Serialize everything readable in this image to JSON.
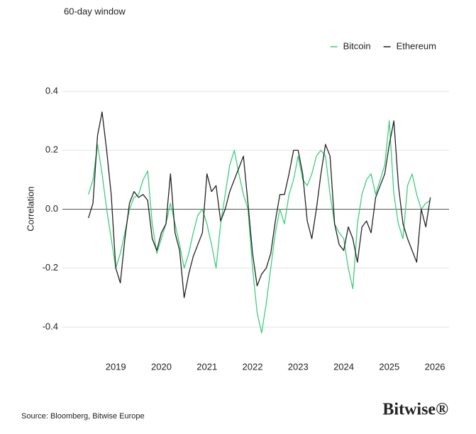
{
  "chart_data": {
    "type": "line",
    "subtitle": "60-day window",
    "y_label": "Correlation",
    "source": "Source: Bloomberg, Bitwise Europe",
    "brand": "Bitwise®",
    "legend": "top-right",
    "grid": true,
    "x": [
      2018.4,
      2018.5,
      2018.6,
      2018.7,
      2018.8,
      2018.9,
      2019.0,
      2019.1,
      2019.2,
      2019.3,
      2019.4,
      2019.5,
      2019.6,
      2019.7,
      2019.8,
      2019.9,
      2020.0,
      2020.1,
      2020.2,
      2020.3,
      2020.4,
      2020.5,
      2020.6,
      2020.7,
      2020.8,
      2020.9,
      2021.0,
      2021.1,
      2021.2,
      2021.3,
      2021.4,
      2021.5,
      2021.6,
      2021.7,
      2021.8,
      2021.9,
      2022.0,
      2022.1,
      2022.2,
      2022.3,
      2022.4,
      2022.5,
      2022.6,
      2022.7,
      2022.8,
      2022.9,
      2023.0,
      2023.1,
      2023.2,
      2023.3,
      2023.4,
      2023.5,
      2023.6,
      2023.7,
      2023.8,
      2023.9,
      2024.0,
      2024.1,
      2024.2,
      2024.3,
      2024.4,
      2024.5,
      2024.6,
      2024.7,
      2024.8,
      2024.9,
      2025.0,
      2025.1,
      2025.2,
      2025.3,
      2025.4,
      2025.5,
      2025.6,
      2025.7,
      2025.8,
      2025.9
    ],
    "series": [
      {
        "name": "Bitcoin",
        "color": "#3ecf7f",
        "values": [
          0.05,
          0.1,
          0.22,
          0.12,
          0.0,
          -0.1,
          -0.2,
          -0.15,
          -0.08,
          0.0,
          0.04,
          0.05,
          0.1,
          0.13,
          -0.05,
          -0.15,
          -0.1,
          -0.05,
          0.02,
          -0.05,
          -0.12,
          -0.2,
          -0.15,
          -0.08,
          -0.02,
          0.0,
          -0.05,
          -0.12,
          -0.2,
          -0.05,
          0.05,
          0.15,
          0.2,
          0.12,
          0.05,
          0.0,
          -0.2,
          -0.35,
          -0.42,
          -0.32,
          -0.2,
          -0.08,
          0.0,
          -0.05,
          0.05,
          0.1,
          0.18,
          0.1,
          0.08,
          0.12,
          0.18,
          0.2,
          0.18,
          0.05,
          -0.05,
          -0.08,
          -0.1,
          -0.2,
          -0.27,
          -0.05,
          0.05,
          0.1,
          0.12,
          0.05,
          0.1,
          0.15,
          0.3,
          0.05,
          -0.05,
          -0.1,
          0.08,
          0.12,
          0.05,
          0.0,
          0.02,
          0.03
        ]
      },
      {
        "name": "Ethereum",
        "color": "#222222",
        "values": [
          -0.03,
          0.02,
          0.25,
          0.33,
          0.2,
          0.05,
          -0.2,
          -0.25,
          -0.1,
          0.02,
          0.06,
          0.04,
          0.05,
          0.03,
          -0.1,
          -0.14,
          -0.08,
          -0.05,
          0.12,
          -0.08,
          -0.14,
          -0.3,
          -0.22,
          -0.16,
          -0.12,
          -0.08,
          0.12,
          0.06,
          0.08,
          -0.04,
          0.0,
          0.06,
          0.1,
          0.14,
          0.18,
          0.02,
          -0.15,
          -0.26,
          -0.22,
          -0.2,
          -0.15,
          -0.04,
          0.05,
          0.05,
          0.12,
          0.2,
          0.2,
          0.12,
          -0.04,
          -0.1,
          0.0,
          0.12,
          0.22,
          0.18,
          -0.05,
          -0.12,
          -0.14,
          -0.06,
          -0.1,
          -0.18,
          -0.06,
          -0.04,
          -0.08,
          0.04,
          0.08,
          0.12,
          0.22,
          0.3,
          0.08,
          -0.05,
          -0.1,
          -0.14,
          -0.18,
          0.0,
          -0.06,
          0.04
        ]
      }
    ],
    "xlim": [
      2017.83,
      2026.31
    ],
    "xticks": [
      2019,
      2020,
      2021,
      2022,
      2023,
      2024,
      2025,
      2026
    ],
    "ylim": [
      -0.4,
      0.4
    ],
    "yticks": [
      0.4,
      0.2,
      {
        "value": 0,
        "label": "0.0"
      },
      -0.2,
      -0.4
    ]
  }
}
